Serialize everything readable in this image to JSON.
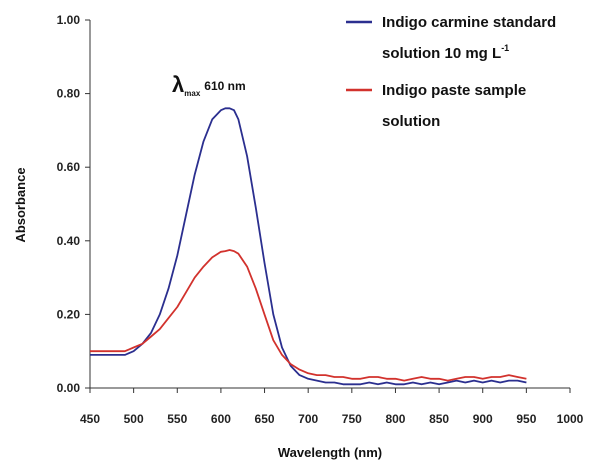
{
  "chart_data": {
    "type": "line",
    "xlabel": "Wavelength (nm)",
    "ylabel": "Absorbance",
    "xlim": [
      450,
      1000
    ],
    "ylim": [
      0.0,
      1.0
    ],
    "x_ticks": [
      "450",
      "500",
      "550",
      "600",
      "650",
      "700",
      "750",
      "800",
      "850",
      "900",
      "950",
      "1000"
    ],
    "y_ticks": [
      "0.00",
      "0.20",
      "0.40",
      "0.60",
      "0.80",
      "1.00"
    ],
    "grid": false,
    "legend_position": "top-right",
    "annotation": {
      "symbol": "λ",
      "subscript": "max",
      "text": "610 nm",
      "x": 610,
      "y": 0.8
    },
    "series": [
      {
        "name": "Indigo carmine standard solution 10 mg L-1",
        "legend_line1": "Indigo carmine standard",
        "legend_line2": "solution 10 mg L",
        "legend_sup": "-1",
        "color": "#2b2f8f",
        "x": [
          450,
          470,
          490,
          500,
          510,
          520,
          530,
          540,
          550,
          560,
          570,
          580,
          590,
          600,
          605,
          610,
          615,
          620,
          630,
          640,
          650,
          660,
          670,
          680,
          690,
          700,
          710,
          720,
          730,
          740,
          750,
          760,
          770,
          780,
          790,
          800,
          810,
          820,
          830,
          840,
          850,
          860,
          870,
          880,
          890,
          900,
          910,
          920,
          930,
          940,
          950
        ],
        "y": [
          0.09,
          0.09,
          0.09,
          0.1,
          0.12,
          0.15,
          0.2,
          0.27,
          0.36,
          0.47,
          0.58,
          0.67,
          0.73,
          0.755,
          0.76,
          0.76,
          0.755,
          0.73,
          0.63,
          0.49,
          0.34,
          0.2,
          0.11,
          0.06,
          0.035,
          0.025,
          0.02,
          0.015,
          0.015,
          0.01,
          0.01,
          0.01,
          0.015,
          0.01,
          0.015,
          0.01,
          0.01,
          0.015,
          0.01,
          0.015,
          0.01,
          0.015,
          0.02,
          0.015,
          0.02,
          0.015,
          0.02,
          0.015,
          0.02,
          0.02,
          0.015
        ]
      },
      {
        "name": "Indigo paste sample solution",
        "legend_line1": "Indigo paste sample",
        "legend_line2": "solution",
        "color": "#d2322d",
        "x": [
          450,
          470,
          490,
          500,
          510,
          520,
          530,
          540,
          550,
          560,
          570,
          580,
          590,
          600,
          605,
          610,
          615,
          620,
          630,
          640,
          650,
          660,
          670,
          680,
          690,
          700,
          710,
          720,
          730,
          740,
          750,
          760,
          770,
          780,
          790,
          800,
          810,
          820,
          830,
          840,
          850,
          860,
          870,
          880,
          890,
          900,
          910,
          920,
          930,
          940,
          950
        ],
        "y": [
          0.1,
          0.1,
          0.1,
          0.11,
          0.12,
          0.14,
          0.16,
          0.19,
          0.22,
          0.26,
          0.3,
          0.33,
          0.355,
          0.37,
          0.372,
          0.375,
          0.372,
          0.365,
          0.33,
          0.27,
          0.2,
          0.13,
          0.09,
          0.065,
          0.05,
          0.04,
          0.035,
          0.035,
          0.03,
          0.03,
          0.025,
          0.025,
          0.03,
          0.03,
          0.025,
          0.025,
          0.02,
          0.025,
          0.03,
          0.025,
          0.025,
          0.02,
          0.025,
          0.03,
          0.03,
          0.025,
          0.03,
          0.03,
          0.035,
          0.03,
          0.025
        ]
      }
    ]
  }
}
